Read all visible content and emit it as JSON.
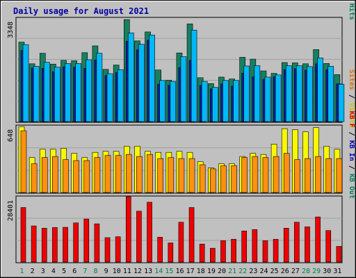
{
  "chart_data": {
    "type": "bar",
    "title": "Daily usage for August 2021",
    "categories": [
      "1",
      "2",
      "3",
      "4",
      "5",
      "6",
      "7",
      "8",
      "9",
      "10",
      "11",
      "12",
      "13",
      "14",
      "15",
      "16",
      "17",
      "18",
      "19",
      "20",
      "21",
      "22",
      "23",
      "24",
      "25",
      "26",
      "27",
      "28",
      "29",
      "30",
      "31"
    ],
    "weekend_days": [
      "1",
      "7",
      "8",
      "14",
      "15",
      "21",
      "22",
      "28",
      "29"
    ],
    "panels": [
      {
        "id": "hits-files-pages",
        "ymax_label": "3348",
        "ylim": [
          0,
          3348
        ],
        "right_label_parts": [
          {
            "text": "Pages",
            "color": "#00a0e0"
          },
          {
            "text": " / ",
            "color": "#000000"
          },
          {
            "text": "Files",
            "color": "#0000c0"
          },
          {
            "text": " / ",
            "color": "#000000"
          },
          {
            "text": "Hits",
            "color": "#008060"
          }
        ],
        "series": [
          {
            "name": "Hits",
            "color": "#168060",
            "values": [
              2570,
              1870,
              2210,
              1860,
              1980,
              1970,
              2230,
              2450,
              1690,
              1830,
              3300,
              2610,
              2900,
              1670,
              1340,
              2220,
              3160,
              1420,
              1230,
              1440,
              1380,
              2080,
              2020,
              1640,
              1560,
              1910,
              1900,
              1870,
              2330,
              1880,
              1520
            ]
          },
          {
            "name": "Files",
            "color": "#0020a0",
            "values": [
              2300,
              1730,
              1720,
              1610,
              1770,
              1760,
              1720,
              1990,
              1490,
              1590,
              2600,
              2320,
              2630,
              1210,
              1180,
              1750,
              1980,
              1170,
              1060,
              1220,
              1150,
              1570,
              1450,
              1370,
              1450,
              1680,
              1710,
              1660,
              1870,
              1680,
              1220
            ]
          },
          {
            "name": "Pages",
            "color": "#00b8f8",
            "values": [
              2490,
              1790,
              1920,
              1760,
              1880,
              1880,
              2000,
              2210,
              1550,
              1680,
              2870,
              2500,
              2800,
              1330,
              1300,
              2100,
              2960,
              1300,
              1110,
              1330,
              1330,
              1800,
              1810,
              1440,
              1510,
              1810,
              1810,
              1780,
              2060,
              1790,
              1210
            ]
          }
        ]
      },
      {
        "id": "visits-sites",
        "ymax_label": "648",
        "ylim": [
          0,
          648
        ],
        "right_label_parts": [
          {
            "text": "Sites",
            "color": "#e07000"
          },
          {
            "text": " / ",
            "color": "#000000"
          },
          {
            "text": "Visits",
            "color": "#c8c800"
          }
        ],
        "series": [
          {
            "name": "Visits",
            "color": "#f8f800",
            "values": [
              640,
              340,
              420,
              420,
              430,
              380,
              340,
              390,
              400,
              400,
              450,
              450,
              400,
              390,
              390,
              400,
              390,
              300,
              240,
              280,
              280,
              350,
              380,
              370,
              470,
              620,
              610,
              590,
              630,
              450,
              420
            ]
          },
          {
            "name": "Sites",
            "color": "#ff9010",
            "values": [
              600,
              280,
              340,
              350,
              320,
              310,
              310,
              340,
              360,
              360,
              370,
              350,
              370,
              330,
              340,
              330,
              330,
              270,
              230,
              260,
              260,
              340,
              350,
              340,
              350,
              380,
              320,
              330,
              350,
              330,
              330
            ]
          }
        ]
      },
      {
        "id": "kbytes",
        "ymax_label": "28401",
        "ylim": [
          0,
          28401
        ],
        "right_label_parts": [
          {
            "text": "KB F",
            "color": "#e00000"
          },
          {
            "text": " / ",
            "color": "#000000"
          },
          {
            "text": "KB In",
            "color": "#0000c0"
          },
          {
            "text": " / ",
            "color": "#000000"
          },
          {
            "text": "KB Out",
            "color": "#008060"
          }
        ],
        "series": [
          {
            "name": "KB F",
            "color": "#ee0000",
            "values": [
              23700,
              15700,
              14700,
              15000,
              15100,
              17000,
              18700,
              16600,
              10600,
              11000,
              28400,
              22100,
              26000,
              10800,
              8300,
              17300,
              23700,
              7800,
              6000,
              9300,
              9900,
              13500,
              14100,
              9300,
              9900,
              14700,
              17300,
              15300,
              19600,
              13700,
              6800
            ]
          }
        ]
      }
    ]
  }
}
